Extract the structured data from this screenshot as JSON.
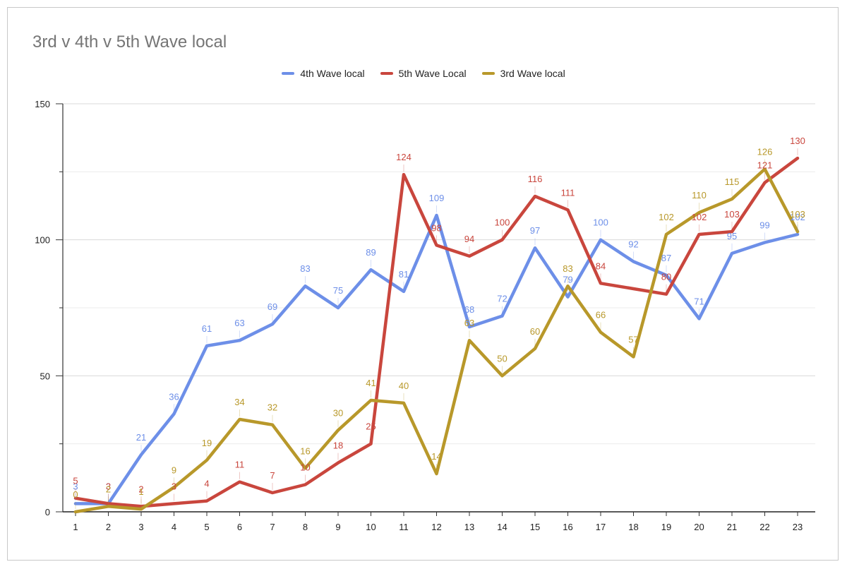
{
  "chart_data": {
    "type": "line",
    "title": "3rd v 4th v 5th Wave local",
    "xlabel": "",
    "ylabel": "",
    "ylim": [
      0,
      150
    ],
    "yticks": [
      0,
      50,
      100,
      150
    ],
    "grid": true,
    "legend_position": "top",
    "categories": [
      "1",
      "2",
      "3",
      "4",
      "5",
      "6",
      "7",
      "8",
      "9",
      "10",
      "11",
      "12",
      "13",
      "14",
      "15",
      "16",
      "17",
      "18",
      "19",
      "20",
      "21",
      "22",
      "23"
    ],
    "series": [
      {
        "name": "4th Wave local",
        "color": "#6d8fe8",
        "values": [
          3,
          3,
          21,
          36,
          61,
          63,
          69,
          83,
          75,
          89,
          81,
          109,
          68,
          72,
          97,
          79,
          100,
          92,
          87,
          71,
          95,
          99,
          102
        ],
        "labels": [
          "3",
          "3",
          "21",
          "36",
          "61",
          "63",
          "69",
          "83",
          "75",
          "89",
          "81",
          "109",
          "68",
          "72",
          "97",
          "79",
          "100",
          "92",
          "87",
          "71",
          "95",
          "99",
          "102"
        ]
      },
      {
        "name": "5th Wave Local",
        "color": "#c9463d",
        "values": [
          5,
          3,
          2,
          3,
          4,
          11,
          7,
          10,
          18,
          25,
          124,
          98,
          94,
          100,
          116,
          111,
          84,
          82,
          80,
          102,
          103,
          121,
          130
        ],
        "labels": [
          "5",
          "3",
          "2",
          "3",
          "4",
          "11",
          "7",
          "10",
          "18",
          "25",
          "124",
          "98",
          "94",
          "100",
          "116",
          "111",
          "84",
          "",
          "80",
          "102",
          "103",
          "121",
          "130"
        ]
      },
      {
        "name": "3rd Wave local",
        "color": "#b8982a",
        "values": [
          0,
          2,
          1,
          9,
          19,
          34,
          32,
          16,
          30,
          41,
          40,
          14,
          63,
          50,
          60,
          83,
          66,
          57,
          102,
          110,
          115,
          126,
          103
        ],
        "labels": [
          "0",
          "2",
          "1",
          "9",
          "19",
          "34",
          "32",
          "16",
          "30",
          "41",
          "40",
          "14",
          "63",
          "50",
          "60",
          "83",
          "66",
          "57",
          "102",
          "110",
          "115",
          "126",
          "103"
        ]
      }
    ]
  }
}
